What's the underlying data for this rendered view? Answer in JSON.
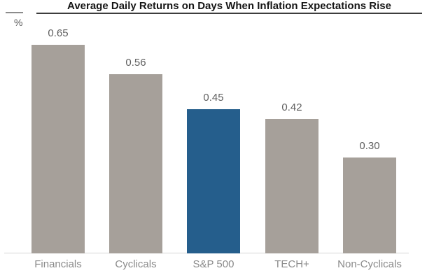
{
  "chart_data": {
    "type": "bar",
    "title": "Average Daily Returns on Days When Inflation Expectations Rise",
    "ylabel": "%",
    "xlabel": "",
    "categories": [
      "Financials",
      "Cyclicals",
      "S&P 500",
      "TECH+",
      "Non-Cyclicals"
    ],
    "values": [
      0.65,
      0.56,
      0.45,
      0.42,
      0.3
    ],
    "value_labels": [
      "0.65",
      "0.56",
      "0.45",
      "0.42",
      "0.30"
    ],
    "highlight_index": 2,
    "highlighted_category": "S&P 500",
    "colors": {
      "bar": "#a6a09a",
      "highlight": "#255e8c"
    },
    "ylim": [
      0,
      0.75
    ],
    "grid": false,
    "legend": false,
    "value_labels_shown": true
  }
}
